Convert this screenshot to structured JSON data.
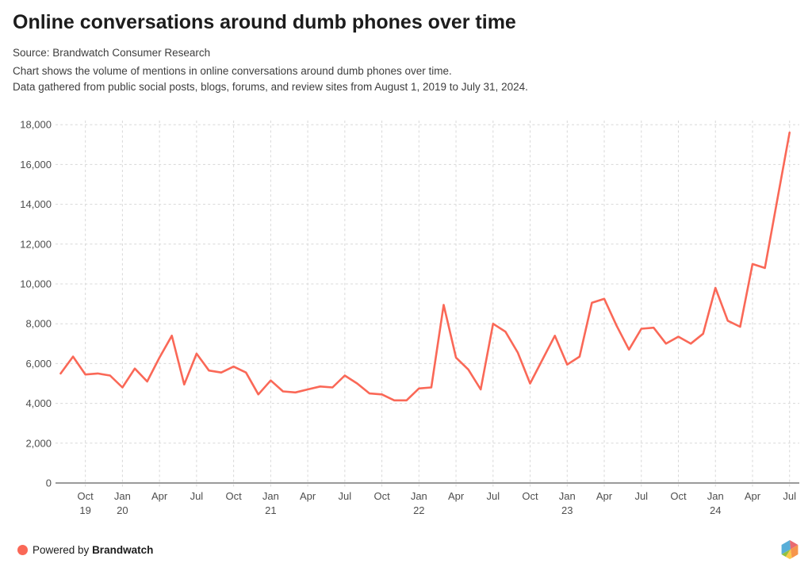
{
  "header": {
    "title": "Online conversations around dumb phones over time",
    "source": "Source: Brandwatch Consumer Research",
    "description_line1": "Chart shows the volume of mentions in online conversations around dumb phones over time.",
    "description_line2": "Data gathered from public social posts, blogs, forums, and review sites from August 1, 2019 to July 31, 2024."
  },
  "chart_data": {
    "type": "line",
    "title": "Online conversations around dumb phones over time",
    "xlabel": "",
    "ylabel": "",
    "ylim": [
      0,
      18000
    ],
    "grid": "dashed",
    "legend_position": "none",
    "series_name": "Volume of mentions",
    "x": [
      "Aug 2019",
      "Sep 2019",
      "Oct 2019",
      "Nov 2019",
      "Dec 2019",
      "Jan 2020",
      "Feb 2020",
      "Mar 2020",
      "Apr 2020",
      "May 2020",
      "Jun 2020",
      "Jul 2020",
      "Aug 2020",
      "Sep 2020",
      "Oct 2020",
      "Nov 2020",
      "Dec 2020",
      "Jan 2021",
      "Feb 2021",
      "Mar 2021",
      "Apr 2021",
      "May 2021",
      "Jun 2021",
      "Jul 2021",
      "Aug 2021",
      "Sep 2021",
      "Oct 2021",
      "Nov 2021",
      "Dec 2021",
      "Jan 2022",
      "Feb 2022",
      "Mar 2022",
      "Apr 2022",
      "May 2022",
      "Jun 2022",
      "Jul 2022",
      "Aug 2022",
      "Sep 2022",
      "Oct 2022",
      "Nov 2022",
      "Dec 2022",
      "Jan 2023",
      "Feb 2023",
      "Mar 2023",
      "Apr 2023",
      "May 2023",
      "Jun 2023",
      "Jul 2023",
      "Aug 2023",
      "Sep 2023",
      "Oct 2023",
      "Nov 2023",
      "Dec 2023",
      "Jan 2024",
      "Feb 2024",
      "Mar 2024",
      "Apr 2024",
      "May 2024",
      "Jun 2024",
      "Jul 2024"
    ],
    "values": [
      5500,
      6350,
      5450,
      5500,
      5400,
      4800,
      5750,
      5100,
      6300,
      7400,
      4950,
      6500,
      5650,
      5550,
      5850,
      5550,
      4450,
      5150,
      4600,
      4550,
      4700,
      4850,
      4800,
      5400,
      5000,
      4500,
      4450,
      4150,
      4150,
      4750,
      4800,
      8950,
      6300,
      5700,
      4700,
      8000,
      7600,
      6550,
      5000,
      6200,
      7400,
      5950,
      6350,
      9050,
      9250,
      7900,
      6700,
      7750,
      7800,
      7000,
      7350,
      7000,
      7500,
      9800,
      8150,
      7850,
      11000,
      10800,
      14200,
      17600
    ],
    "y_ticks": [
      0,
      2000,
      4000,
      6000,
      8000,
      10000,
      12000,
      14000,
      16000,
      18000
    ],
    "x_ticks": [
      {
        "index": 2,
        "label": "Oct",
        "year": "19"
      },
      {
        "index": 5,
        "label": "Jan",
        "year": "20"
      },
      {
        "index": 8,
        "label": "Apr"
      },
      {
        "index": 11,
        "label": "Jul"
      },
      {
        "index": 14,
        "label": "Oct"
      },
      {
        "index": 17,
        "label": "Jan",
        "year": "21"
      },
      {
        "index": 20,
        "label": "Apr"
      },
      {
        "index": 23,
        "label": "Jul"
      },
      {
        "index": 26,
        "label": "Oct"
      },
      {
        "index": 29,
        "label": "Jan",
        "year": "22"
      },
      {
        "index": 32,
        "label": "Apr"
      },
      {
        "index": 35,
        "label": "Jul"
      },
      {
        "index": 38,
        "label": "Oct"
      },
      {
        "index": 41,
        "label": "Jan",
        "year": "23"
      },
      {
        "index": 44,
        "label": "Apr"
      },
      {
        "index": 47,
        "label": "Jul"
      },
      {
        "index": 50,
        "label": "Oct"
      },
      {
        "index": 53,
        "label": "Jan",
        "year": "24"
      },
      {
        "index": 56,
        "label": "Apr"
      },
      {
        "index": 59,
        "label": "Jul"
      }
    ],
    "line_color": "#fa6857"
  },
  "colors": {
    "accent": "#fa6857",
    "grid": "#d8d8d8",
    "axis": "#9b9b9b",
    "tick_text": "#4e4e4e"
  },
  "footer": {
    "powered_by": "Powered by",
    "brand": "Brandwatch",
    "dot_color": "#fa6857",
    "logo_colors": {
      "blue": "#58aed8",
      "red": "#e96a70",
      "orange": "#f6954c",
      "yellow": "#fbc94b",
      "green": "#93c13e"
    }
  }
}
